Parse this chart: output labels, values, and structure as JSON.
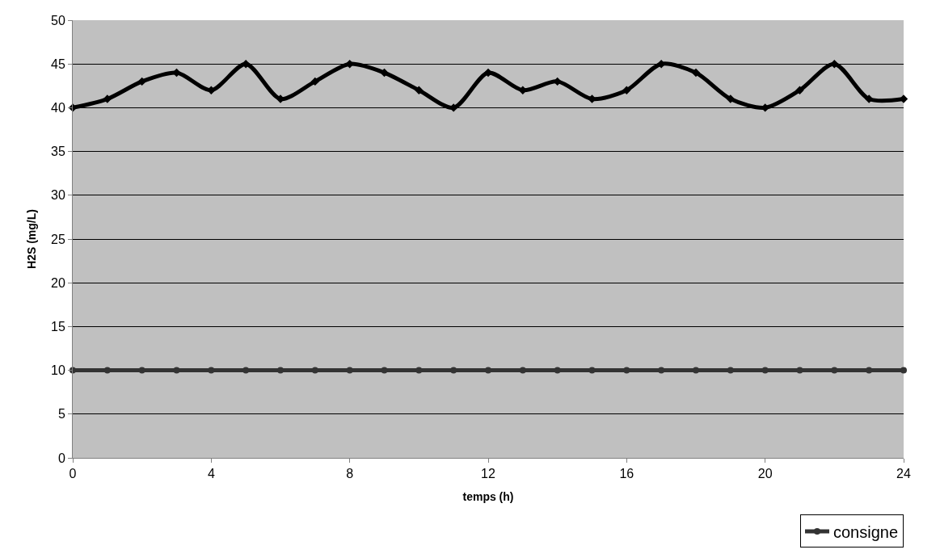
{
  "chart_data": {
    "type": "line",
    "xlabel": "temps (h)",
    "ylabel": "H2S (mg/L)",
    "x": [
      0,
      1,
      2,
      3,
      4,
      5,
      6,
      7,
      8,
      9,
      10,
      11,
      12,
      13,
      14,
      15,
      16,
      17,
      18,
      19,
      20,
      21,
      22,
      23,
      24
    ],
    "series": [
      {
        "color": "#000000",
        "marker": "diamond",
        "values": [
          40,
          41,
          43,
          44,
          42,
          45,
          41,
          43,
          45,
          44,
          42,
          40,
          44,
          42,
          43,
          41,
          42,
          45,
          44,
          41,
          40,
          42,
          45,
          41,
          41
        ]
      },
      {
        "name": "consigne",
        "color": "#333333",
        "marker": "circle",
        "values": [
          10,
          10,
          10,
          10,
          10,
          10,
          10,
          10,
          10,
          10,
          10,
          10,
          10,
          10,
          10,
          10,
          10,
          10,
          10,
          10,
          10,
          10,
          10,
          10,
          10
        ]
      }
    ],
    "xlim": [
      0,
      24
    ],
    "xticks": [
      0,
      4,
      8,
      12,
      16,
      20,
      24
    ],
    "ylim": [
      0,
      50
    ],
    "yticks": [
      0,
      5,
      10,
      15,
      20,
      25,
      30,
      35,
      40,
      45,
      50
    ],
    "grid": "y",
    "legend": "bottom right"
  }
}
